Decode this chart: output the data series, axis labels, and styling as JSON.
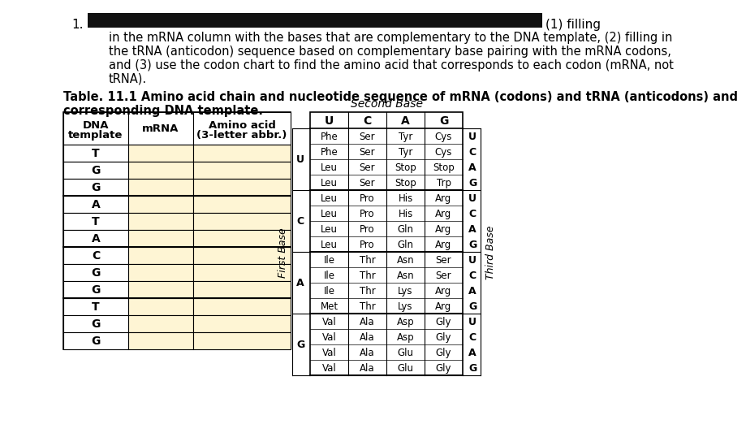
{
  "bg_color": "#ffffff",
  "text_color": "#000000",
  "redacted_bar_color": "#111111",
  "fill_color": "#fef5d4",
  "paragraph_text_lines": [
    "in the mRNA column with the bases that are complementary to the DNA template, (2) filling in",
    "the tRNA (anticodon) sequence based on complementary base pairing with the mRNA codons,",
    "and (3) use the codon chart to find the amino acid that corresponds to each codon (mRNA, not",
    "tRNA)."
  ],
  "bold_heading_lines": [
    "Table. 11.1 Amino acid chain and nucleotide sequence of mRNA (codons) and tRNA (anticodons) and",
    "corresponding DNA template."
  ],
  "dna_col_header_line1": "DNA",
  "dna_col_header_line2": "template",
  "mrna_col_header": "mRNA",
  "amino_col_header_line1": "Amino acid",
  "amino_col_header_line2": "(3-letter abbr.)",
  "dna_bases": [
    "T",
    "G",
    "G",
    "A",
    "T",
    "A",
    "C",
    "G",
    "G",
    "T",
    "G",
    "G"
  ],
  "codon_table_title": "Second Base",
  "first_base_label": "First Base",
  "third_base_label": "Third Base",
  "second_bases": [
    "U",
    "C",
    "A",
    "G"
  ],
  "first_bases": [
    "U",
    "C",
    "A",
    "G"
  ],
  "third_bases": [
    "U",
    "C",
    "A",
    "G"
  ],
  "codon_data": {
    "U": [
      [
        "Phe",
        "Ser",
        "Tyr",
        "Cys"
      ],
      [
        "Phe",
        "Ser",
        "Tyr",
        "Cys"
      ],
      [
        "Leu",
        "Ser",
        "Stop",
        "Stop"
      ],
      [
        "Leu",
        "Ser",
        "Stop",
        "Trp"
      ]
    ],
    "C": [
      [
        "Leu",
        "Pro",
        "His",
        "Arg"
      ],
      [
        "Leu",
        "Pro",
        "His",
        "Arg"
      ],
      [
        "Leu",
        "Pro",
        "Gln",
        "Arg"
      ],
      [
        "Leu",
        "Pro",
        "Gln",
        "Arg"
      ]
    ],
    "A": [
      [
        "Ile",
        "Thr",
        "Asn",
        "Ser"
      ],
      [
        "Ile",
        "Thr",
        "Asn",
        "Ser"
      ],
      [
        "Ile",
        "Thr",
        "Lys",
        "Arg"
      ],
      [
        "Met",
        "Thr",
        "Lys",
        "Arg"
      ]
    ],
    "G": [
      [
        "Val",
        "Ala",
        "Asp",
        "Gly"
      ],
      [
        "Val",
        "Ala",
        "Asp",
        "Gly"
      ],
      [
        "Val",
        "Ala",
        "Glu",
        "Gly"
      ],
      [
        "Val",
        "Ala",
        "Glu",
        "Gly"
      ]
    ]
  }
}
